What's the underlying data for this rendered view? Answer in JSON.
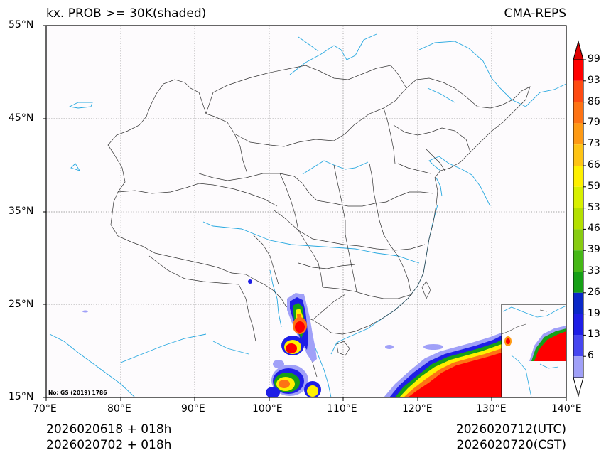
{
  "header": {
    "title_left": "kx. PROB >= 30K(shaded)",
    "title_right": "CMA-REPS"
  },
  "axes": {
    "lat_labels": [
      "55°N",
      "45°N",
      "35°N",
      "25°N",
      "15°N"
    ],
    "lon_labels": [
      "70°E",
      "80°E",
      "90°E",
      "100°E",
      "110°E",
      "120°E",
      "130°E",
      "140°E"
    ],
    "lat_range": [
      15,
      55
    ],
    "lon_range": [
      70,
      140
    ]
  },
  "map": {
    "note": "No: GS (2019) 1786",
    "ocean_color": "#fdfbfd",
    "coast_color": "#29a9e0",
    "border_color": "#333333"
  },
  "colorbar": {
    "labels": [
      "99",
      "93",
      "86",
      "79",
      "73",
      "66",
      "59",
      "53",
      "46",
      "39",
      "33",
      "26",
      "19",
      "13",
      "6"
    ],
    "colors": [
      "#ff0000",
      "#fe4a12",
      "#fe7314",
      "#fe9a14",
      "#fec414",
      "#fef000",
      "#d8f000",
      "#b4e000",
      "#88cc10",
      "#46b816",
      "#16a016",
      "#0a28c8",
      "#1e1ee6",
      "#4646f0",
      "#a0a0f8"
    ],
    "over_color": "#e00000",
    "under_color": "#ffffff"
  },
  "footer": {
    "left_line1": "2026020618  +  018h",
    "left_line2": "2026020702  +  018h",
    "right_line1": "2026020712(UTC)",
    "right_line2": "2026020720(CST)"
  }
}
